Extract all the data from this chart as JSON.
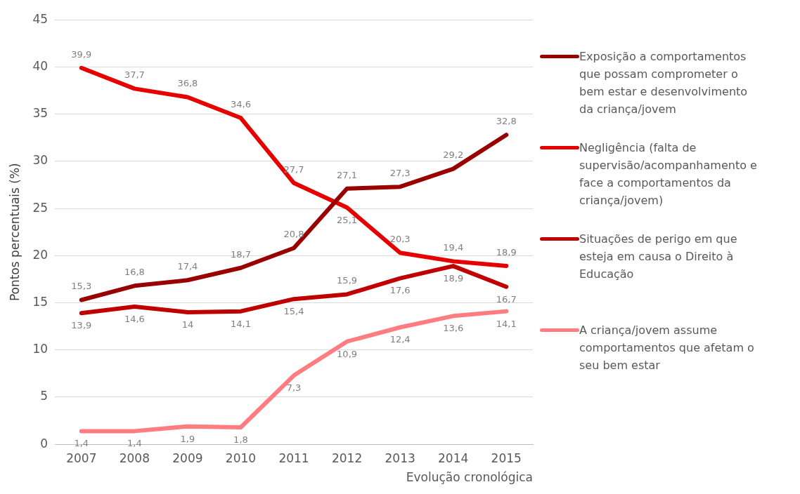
{
  "chart_data": {
    "type": "line",
    "xlabel": "Evolução cronológica",
    "ylabel": "Pontos percentuais (%)",
    "categories": [
      "2007",
      "2008",
      "2009",
      "2010",
      "2011",
      "2012",
      "2013",
      "2014",
      "2015"
    ],
    "series": [
      {
        "name": "Exposição a comportamentos que possam comprometer o bem estar e desenvolvimento da criança/jovem",
        "color": "#990000",
        "values": [
          15.3,
          16.8,
          17.4,
          18.7,
          20.8,
          27.1,
          27.3,
          29.2,
          32.8
        ],
        "value_labels": [
          "15,3",
          "16,8",
          "17,4",
          "18,7",
          "20,8",
          "27,1",
          "27,3",
          "29,2",
          "32,8"
        ]
      },
      {
        "name": "Negligência (falta de supervisão/acompanhamento e face a comportamentos da criança/jovem)",
        "color": "#e60000",
        "values": [
          39.9,
          37.7,
          36.8,
          34.6,
          27.7,
          25.1,
          20.3,
          19.4,
          18.9
        ],
        "value_labels": [
          "39,9",
          "37,7",
          "36,8",
          "34,6",
          "27,7",
          "25,1",
          "20,3",
          "19,4",
          "18,9"
        ]
      },
      {
        "name": "Situações de perigo em que esteja em causa o Direito à Educação",
        "color": "#c00000",
        "values": [
          13.9,
          14.6,
          14,
          14.1,
          15.4,
          15.9,
          17.6,
          18.9,
          16.7
        ],
        "value_labels": [
          "13,9",
          "14,6",
          "14",
          "14,1",
          "15,4",
          "15,9",
          "17,6",
          "18,9",
          "16,7"
        ]
      },
      {
        "name": "A criança/jovem assume comportamentos que afetam o seu bem estar",
        "color": "#ff7c80",
        "values": [
          1.4,
          1.4,
          1.9,
          1.8,
          7.3,
          10.9,
          12.4,
          13.6,
          14.1
        ],
        "value_labels": [
          "1,4",
          "1,4",
          "1,9",
          "1,8",
          "7,3",
          "10,9",
          "12,4",
          "13,6",
          "14,1"
        ]
      }
    ],
    "ylim": [
      0,
      45
    ],
    "yticks": [
      0,
      5,
      10,
      15,
      20,
      25,
      30,
      35,
      40,
      45
    ],
    "grid": "y",
    "legend": "right",
    "marker": "none",
    "line_style": "solid"
  }
}
